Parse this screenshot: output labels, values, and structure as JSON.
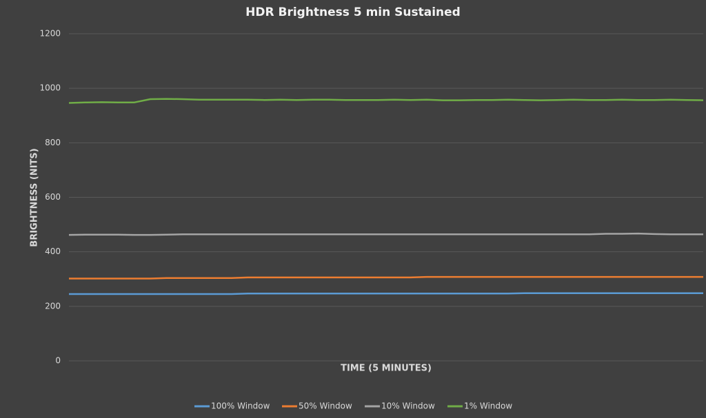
{
  "chart_data": {
    "type": "line",
    "title": "HDR Brightness 5 min Sustained",
    "x_label": "TIME (5 MINUTES)",
    "y_label": "BRIGHTNESS (NITS)",
    "categories": [
      null,
      null,
      null,
      null,
      null,
      null,
      null,
      null,
      null,
      null,
      null,
      null,
      null,
      null,
      null,
      null,
      null,
      null,
      null,
      null,
      null,
      null,
      null,
      null,
      null,
      null,
      null,
      null,
      null,
      null,
      null,
      null,
      null,
      null,
      null,
      null,
      null,
      null,
      null,
      null
    ],
    "ylim": [
      0,
      1200
    ],
    "yticks": [
      0,
      200,
      400,
      600,
      800,
      1000,
      1200
    ],
    "grid": true,
    "legend": "bottom",
    "series": [
      {
        "name": "100% Window",
        "color": "#5b9bd5",
        "values": [
          245,
          245,
          245,
          245,
          245,
          245,
          245,
          245,
          245,
          245,
          245,
          247,
          247,
          247,
          247,
          247,
          247,
          247,
          247,
          247,
          247,
          247,
          247,
          247,
          247,
          247,
          247,
          247,
          248,
          248,
          248,
          248,
          248,
          248,
          248,
          248,
          248,
          248,
          248,
          248
        ]
      },
      {
        "name": "50% Window",
        "color": "#ed7d31",
        "values": [
          302,
          302,
          302,
          302,
          302,
          302,
          304,
          304,
          304,
          304,
          304,
          306,
          306,
          306,
          306,
          306,
          306,
          306,
          306,
          306,
          306,
          306,
          308,
          308,
          308,
          308,
          308,
          308,
          308,
          308,
          308,
          308,
          308,
          308,
          308,
          308,
          308,
          308,
          308,
          308
        ]
      },
      {
        "name": "10% Window",
        "color": "#a5a5a5",
        "values": [
          462,
          463,
          463,
          463,
          462,
          462,
          463,
          464,
          464,
          464,
          464,
          464,
          464,
          464,
          464,
          464,
          464,
          464,
          464,
          464,
          464,
          464,
          464,
          464,
          464,
          464,
          464,
          464,
          464,
          464,
          464,
          464,
          464,
          466,
          466,
          467,
          465,
          464,
          464,
          464
        ]
      },
      {
        "name": "1% Window",
        "color": "#70ad47",
        "values": [
          946,
          948,
          949,
          948,
          948,
          960,
          961,
          960,
          958,
          958,
          958,
          958,
          957,
          958,
          957,
          958,
          958,
          957,
          957,
          957,
          958,
          957,
          958,
          956,
          956,
          957,
          957,
          958,
          957,
          956,
          957,
          958,
          957,
          957,
          958,
          957,
          957,
          958,
          957,
          956
        ]
      }
    ]
  }
}
